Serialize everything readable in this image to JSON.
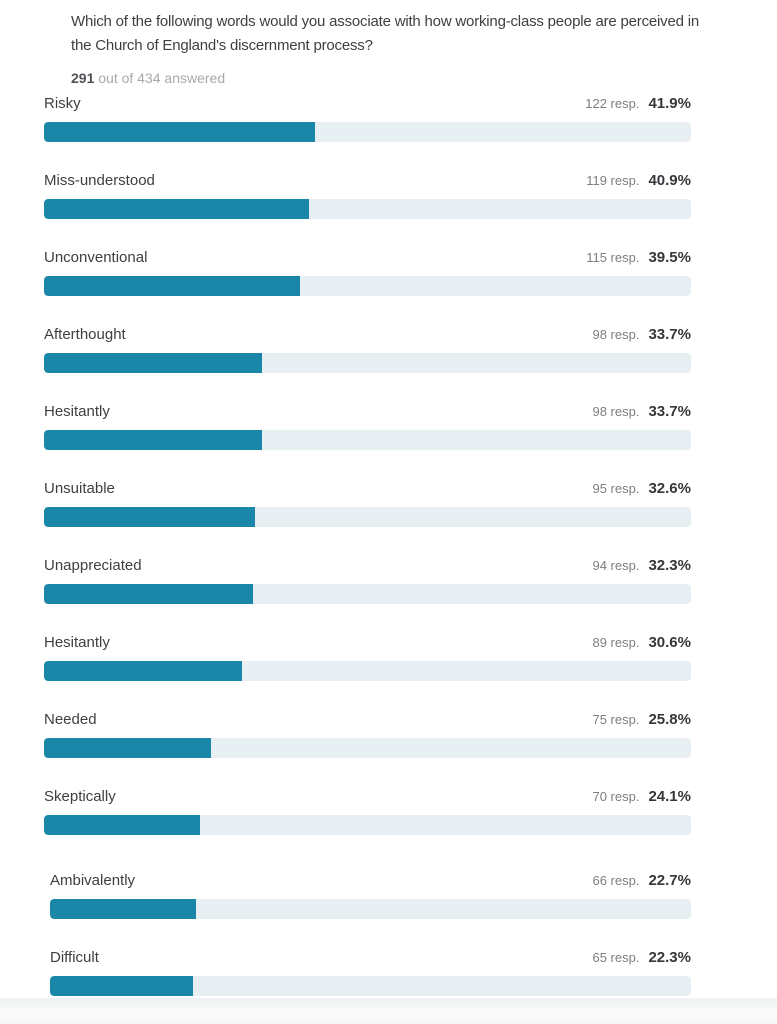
{
  "header": {
    "question": "Which of the following words would you associate with how working-class people are perceived in the Church of England's discernment process?",
    "answered_count": "291",
    "answered_suffix": "out of 434 answered"
  },
  "colors": {
    "bar_fill": "#1a87a8",
    "bar_track": "#e8eff2"
  },
  "chart_data": {
    "type": "bar",
    "orientation": "horizontal",
    "title": "Which of the following words would you associate with how working-class people are perceived in the Church of England's discernment process?",
    "answered": 291,
    "total_invited": 434,
    "xlim": [
      0,
      100
    ],
    "grid": false,
    "legend": "none",
    "categories": [
      "Risky",
      "Miss-understood",
      "Unconventional",
      "Afterthought",
      "Hesitantly",
      "Unsuitable",
      "Unappreciated",
      "Hesitantly",
      "Needed",
      "Skeptically",
      "Ambivalently",
      "Difficult"
    ],
    "values_percent": [
      41.9,
      40.9,
      39.5,
      33.7,
      33.7,
      32.6,
      32.3,
      30.6,
      25.8,
      24.1,
      22.7,
      22.3
    ],
    "responses": [
      122,
      119,
      115,
      98,
      98,
      95,
      94,
      89,
      75,
      70,
      66,
      65
    ],
    "rows": [
      {
        "label": "Risky",
        "responses_label": "122 resp.",
        "percent_label": "41.9%",
        "percent": 41.9
      },
      {
        "label": "Miss-understood",
        "responses_label": "119 resp.",
        "percent_label": "40.9%",
        "percent": 40.9
      },
      {
        "label": "Unconventional",
        "responses_label": "115 resp.",
        "percent_label": "39.5%",
        "percent": 39.5
      },
      {
        "label": "Afterthought",
        "responses_label": "98 resp.",
        "percent_label": "33.7%",
        "percent": 33.7
      },
      {
        "label": "Hesitantly",
        "responses_label": "98 resp.",
        "percent_label": "33.7%",
        "percent": 33.7
      },
      {
        "label": "Unsuitable",
        "responses_label": "95 resp.",
        "percent_label": "32.6%",
        "percent": 32.6
      },
      {
        "label": "Unappreciated",
        "responses_label": "94 resp.",
        "percent_label": "32.3%",
        "percent": 32.3
      },
      {
        "label": "Hesitantly",
        "responses_label": "89 resp.",
        "percent_label": "30.6%",
        "percent": 30.6
      },
      {
        "label": "Needed",
        "responses_label": "75 resp.",
        "percent_label": "25.8%",
        "percent": 25.8
      },
      {
        "label": "Skeptically",
        "responses_label": "70 resp.",
        "percent_label": "24.1%",
        "percent": 24.1
      },
      {
        "label": "Ambivalently",
        "responses_label": "66 resp.",
        "percent_label": "22.7%",
        "percent": 22.7
      },
      {
        "label": "Difficult",
        "responses_label": "65 resp.",
        "percent_label": "22.3%",
        "percent": 22.3
      }
    ]
  }
}
